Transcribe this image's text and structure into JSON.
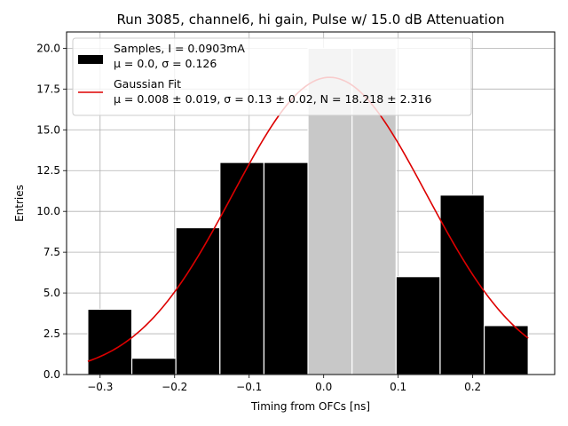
{
  "chart_data": {
    "type": "bar",
    "title": "Run 3085, channel6, hi gain, Pulse w/ 15.0 dB Attenuation",
    "xlabel": "Timing from OFCs [ns]",
    "ylabel": "Entries",
    "xlim": [
      -0.345,
      0.31
    ],
    "ylim": [
      0,
      21
    ],
    "grid": true,
    "x_ticks": [
      -0.3,
      -0.2,
      -0.1,
      0.0,
      0.1,
      0.2
    ],
    "x_tick_labels": [
      "−0.3",
      "−0.2",
      "−0.1",
      "0.0",
      "0.1",
      "0.2"
    ],
    "y_ticks": [
      0,
      2.5,
      5,
      7.5,
      10,
      12.5,
      15,
      17.5,
      20
    ],
    "y_tick_labels": [
      "0.0",
      "2.5",
      "5.0",
      "7.5",
      "10.0",
      "12.5",
      "15.0",
      "17.5",
      "20.0"
    ],
    "bin_edges": [
      -0.3165,
      -0.2574,
      -0.1983,
      -0.1392,
      -0.0801,
      -0.021,
      0.0381,
      0.0972,
      0.1563,
      0.2154,
      0.2745
    ],
    "counts": [
      4,
      1,
      9,
      13,
      13,
      20,
      20,
      6,
      11,
      3
    ],
    "highlight_color": "#c8c8c8",
    "gaussian_fit": {
      "mu": 0.008,
      "sigma": 0.13,
      "N": 18.218,
      "color": "#dd0000"
    },
    "legend": {
      "position": "top-left",
      "entries": [
        {
          "line1": "Samples, I = 0.0903mA",
          "line2": "μ = 0.0, σ = 0.126",
          "kind": "patch",
          "color": "#000000"
        },
        {
          "line1": "Gaussian Fit",
          "line2": "μ = 0.008 ± 0.019, σ = 0.13 ± 0.02, N = 18.218 ± 2.316",
          "kind": "line",
          "color": "#dd0000"
        }
      ]
    }
  }
}
